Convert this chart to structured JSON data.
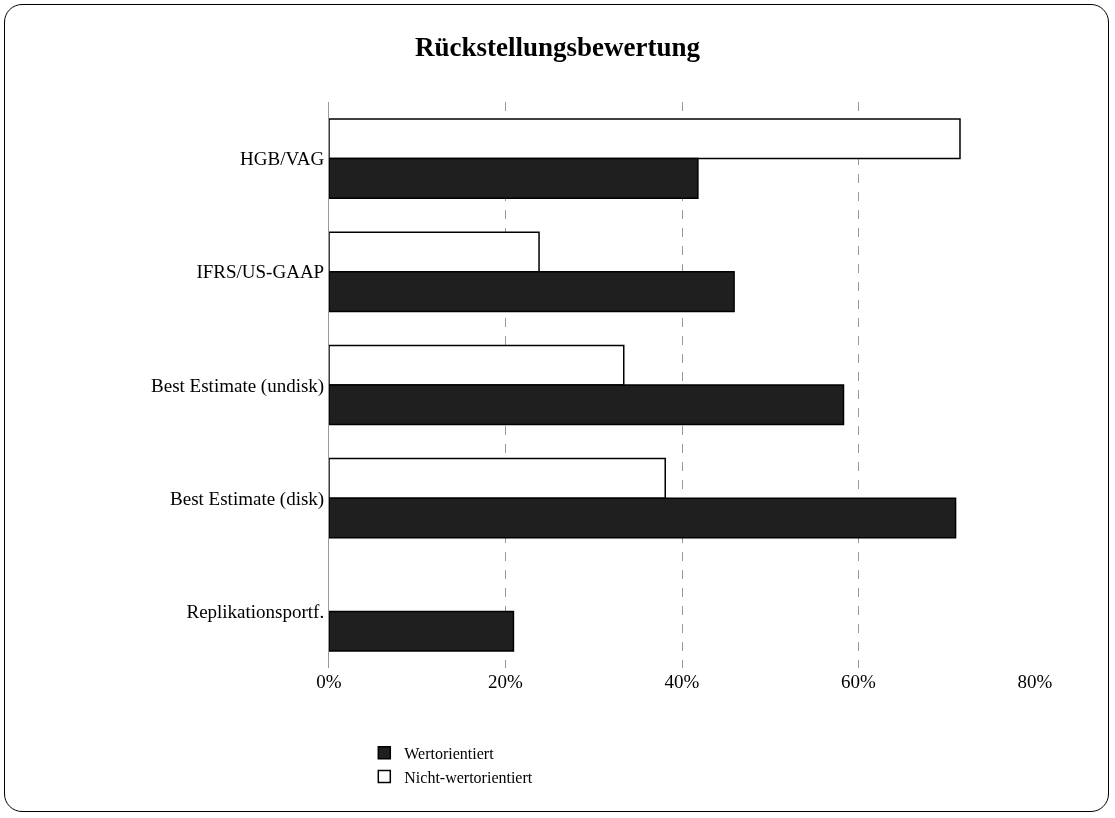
{
  "chart_data": {
    "type": "bar",
    "orientation": "horizontal",
    "title": "Rückstellungsbewertung",
    "categories": [
      "HGB/VAG",
      "IFRS/US-GAAP",
      "Best Estimate (undisk)",
      "Best Estimate (disk)",
      "Replikationsportf."
    ],
    "series": [
      {
        "name": "Wertorientiert",
        "color": "#1f1f1f",
        "values": [
          41.8,
          45.9,
          58.3,
          71.0,
          20.9
        ]
      },
      {
        "name": "Nicht-wertorientiert",
        "color": "#ffffff",
        "values": [
          71.5,
          23.8,
          33.4,
          38.1,
          null
        ]
      }
    ],
    "xlim": [
      0,
      80
    ],
    "xticks": [
      {
        "value": 0,
        "label": "0%"
      },
      {
        "value": 20,
        "label": "20%"
      },
      {
        "value": 40,
        "label": "40%"
      },
      {
        "value": 60,
        "label": "60%"
      },
      {
        "value": 80,
        "label": "80%"
      }
    ],
    "grid": "x",
    "legend": "bottom"
  }
}
